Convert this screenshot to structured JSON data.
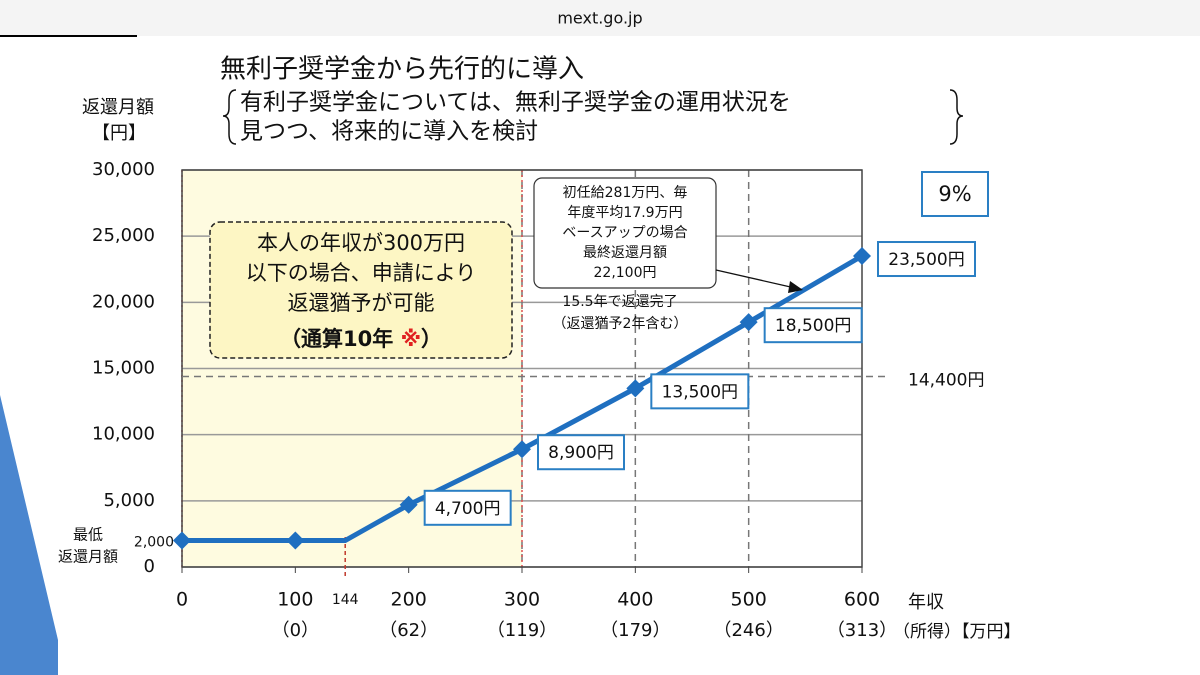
{
  "header": {
    "site": "mext.go.jp"
  },
  "chart_data": {
    "type": "line",
    "title": "無利子奨学金から先行的に導入",
    "subtitle": [
      "有利子奨学金については、無利子奨学金の運用状況を",
      "見つつ、将来的に導入を検討"
    ],
    "y_label": [
      "返還月額",
      "【円】"
    ],
    "x_label": [
      "年収",
      "（所得）【万円】"
    ],
    "x": [
      0,
      100,
      144,
      200,
      300,
      400,
      500,
      600
    ],
    "series": [
      {
        "name": "返還月額",
        "color": "#1f6fc0",
        "values": [
          2000,
          2000,
          2000,
          4700,
          8900,
          13500,
          18500,
          23500
        ],
        "value_labels": [
          "2,000",
          null,
          null,
          "4,700円",
          "8,900円",
          "13,500円",
          "18,500円",
          "23,500円"
        ],
        "markers": [
          true,
          true,
          false,
          true,
          true,
          true,
          true,
          true
        ]
      }
    ],
    "xlim": [
      0,
      600
    ],
    "ylim": [
      0,
      30000
    ],
    "xticks": [
      0,
      100,
      200,
      300,
      400,
      500,
      600
    ],
    "x_sublabels": [
      null,
      "（0）",
      "（62）",
      "（119）",
      "（179）",
      "（246）",
      "（313）"
    ],
    "extra_xtick": 144,
    "yticks": [
      0,
      {
        "value": 5000,
        "label": "5,000"
      },
      {
        "value": 10000,
        "label": "10,000"
      },
      {
        "value": 15000,
        "label": "15,000"
      },
      {
        "value": 20000,
        "label": "20,000"
      },
      {
        "value": 25000,
        "label": "25,000"
      },
      {
        "value": 30000,
        "label": "30,000"
      }
    ],
    "grid": true,
    "dashed_xlines": [
      300,
      400,
      500
    ],
    "highlight_xrange": [
      0,
      300
    ],
    "reference_line": {
      "value": 14400,
      "label": "14,400円"
    },
    "min_label": [
      "最低",
      "返還月額"
    ],
    "rate_label": "9%",
    "deferral_box": {
      "lines": [
        "本人の年収が300万円",
        "以下の場合、申請により",
        "返還猶予が可能"
      ],
      "last_line": [
        "（通算10年 ",
        "※",
        "）"
      ]
    },
    "callout": {
      "lines": [
        "初任給281万円、毎",
        "年度平均17.9万円",
        "ベースアップの場合",
        "最終返還月額",
        "22,100円"
      ]
    },
    "completion_note": [
      "15.5年で返還完了",
      "（返還猶予2年含む）"
    ]
  }
}
